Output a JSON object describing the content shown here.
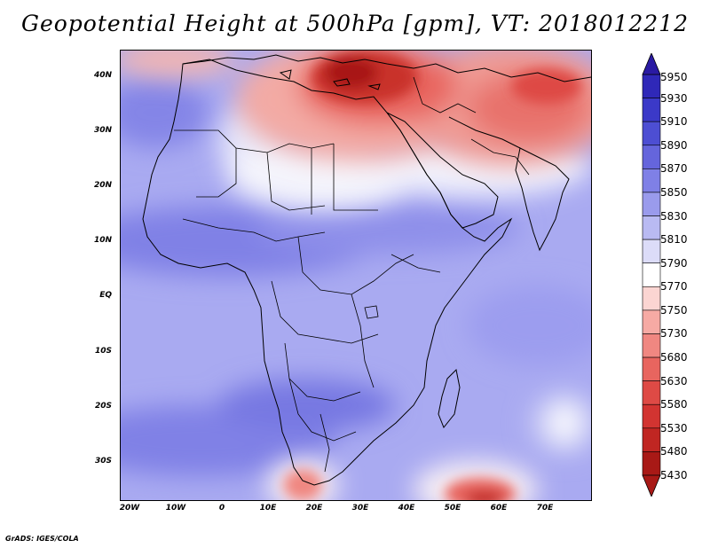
{
  "title": "Geopotential Height at 500hPa [gpm], VT: 2018012212",
  "credit": "GrADS: IGES/COLA",
  "axes": {
    "lat_labels": [
      "40N",
      "30N",
      "20N",
      "10N",
      "EQ",
      "10S",
      "20S",
      "30S"
    ],
    "lon_labels": [
      "20W",
      "10W",
      "0",
      "10E",
      "20E",
      "30E",
      "40E",
      "50E",
      "60E",
      "70E"
    ]
  },
  "colorbar": {
    "levels": [
      "5950",
      "5930",
      "5910",
      "5890",
      "5870",
      "5850",
      "5830",
      "5810",
      "5790",
      "5770",
      "5750",
      "5730",
      "5680",
      "5630",
      "5580",
      "5530",
      "5480",
      "5430"
    ],
    "colors": [
      "#2a1aa3",
      "#2f28b8",
      "#3b39c8",
      "#4d4ed3",
      "#6565dc",
      "#7f80e6",
      "#9a9bec",
      "#b9baf2",
      "#dcdcf8",
      "#ffffff",
      "#fbd5d2",
      "#f6aaa4",
      "#f08781",
      "#e8655f",
      "#de4a45",
      "#d23431",
      "#c02622",
      "#a81916"
    ]
  },
  "map": {
    "region": "Africa, Middle East and South Asia",
    "lon_range": [
      -22,
      80
    ],
    "lat_range": [
      -37,
      45
    ]
  }
}
